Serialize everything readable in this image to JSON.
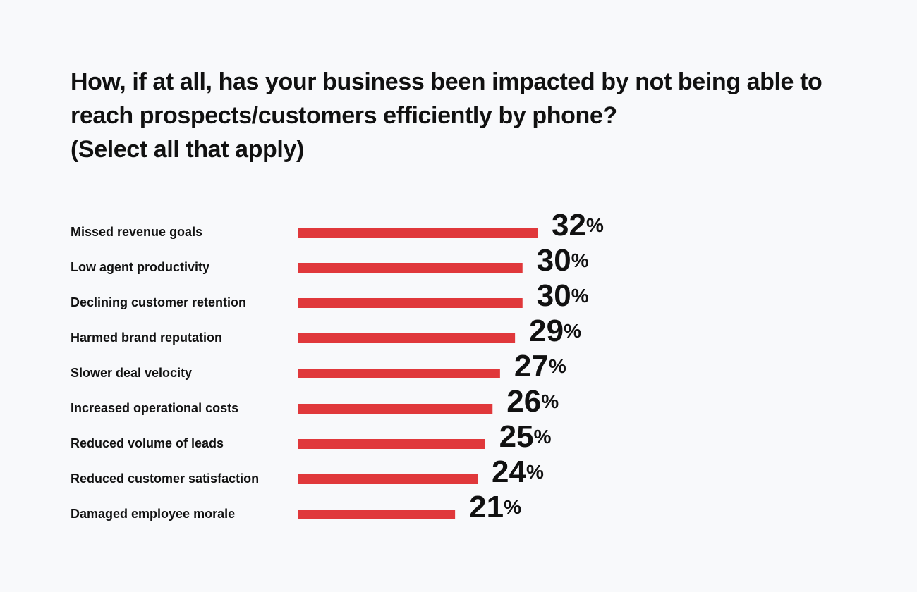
{
  "chart_data": {
    "type": "hbar",
    "title": "How, if at all, has your business been impacted by not being able to reach prospects/customers efficiently by phone?",
    "subtitle": "(Select all that apply)",
    "categories": [
      "Missed revenue goals",
      "Low agent productivity",
      "Declining customer retention",
      "Harmed brand reputation",
      "Slower deal velocity",
      "Increased operational costs",
      "Reduced volume of leads",
      "Reduced customer satisfaction",
      "Damaged employee morale"
    ],
    "values": [
      32,
      30,
      30,
      29,
      27,
      26,
      25,
      24,
      21
    ],
    "value_labels": [
      "32%",
      "30%",
      "30%",
      "29%",
      "27%",
      "26%",
      "25%",
      "24%",
      "21%"
    ],
    "color": "#e0383b"
  }
}
